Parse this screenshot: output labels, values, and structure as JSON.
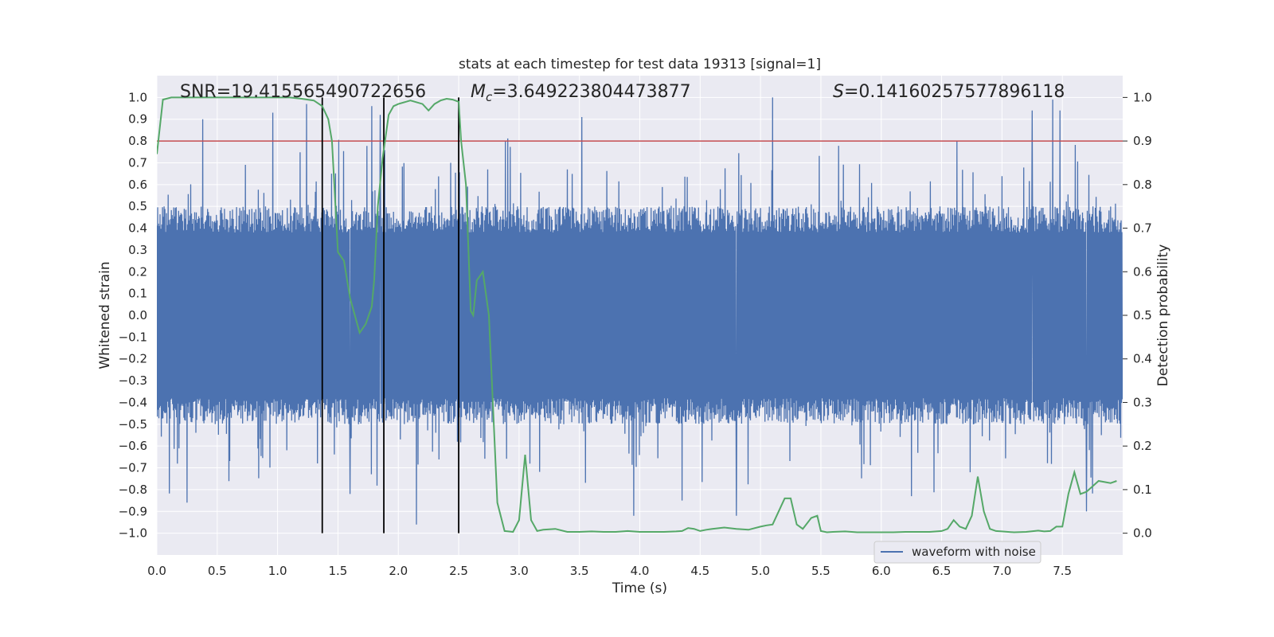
{
  "chart_data": {
    "type": "line",
    "title": "stats at each timestep for test data 19313 [signal=1]",
    "xlabel": "Time (s)",
    "ylabel": "Whitened strain",
    "y2label": "Detection probability",
    "xlim": [
      0.0,
      8.0
    ],
    "ylim": [
      -1.1,
      1.1
    ],
    "y2lim": [
      -0.05,
      1.05
    ],
    "x_ticks": [
      "0.0",
      "0.5",
      "1.0",
      "1.5",
      "2.0",
      "2.5",
      "3.0",
      "3.5",
      "4.0",
      "4.5",
      "5.0",
      "5.5",
      "6.0",
      "6.5",
      "7.0",
      "7.5"
    ],
    "y_ticks": [
      "1.0",
      "0.9",
      "0.8",
      "0.7",
      "0.6",
      "0.5",
      "0.4",
      "0.3",
      "0.2",
      "0.1",
      "0.0",
      "-0.1",
      "-0.2",
      "-0.3",
      "-0.4",
      "-0.5",
      "-0.6",
      "-0.7",
      "-0.8",
      "-0.9",
      "-1.0"
    ],
    "y2_ticks": [
      "1.0",
      "0.9",
      "0.8",
      "0.7",
      "0.6",
      "0.5",
      "0.4",
      "0.3",
      "0.2",
      "0.1",
      "0.0"
    ],
    "grid": true,
    "legend": {
      "position": "bottom-right",
      "entries": [
        "waveform with noise"
      ]
    },
    "annotations": {
      "snr_label": "SNR=",
      "snr_value": "19.415565490722656",
      "mc_symbol": "M",
      "mc_subscript": "c",
      "mc_value": "=3.649223804473877",
      "s_symbol": "S",
      "s_value": "=0.14160257577896118"
    },
    "threshold": {
      "axis": "y2",
      "value": 0.9,
      "color": "#c44e52"
    },
    "event_lines": {
      "x": [
        1.37,
        1.88,
        2.5
      ],
      "color": "#000000"
    },
    "series": [
      {
        "name": "waveform with noise",
        "axis": "y",
        "color": "#4c72b0",
        "style": "dense noisy strain, envelope approx +/-0.45 with spikes up to +1.0 and down to -0.96",
        "notable_peaks": [
          {
            "x": 0.38,
            "y": 0.9
          },
          {
            "x": 0.96,
            "y": 0.93
          },
          {
            "x": 1.24,
            "y": 0.97
          },
          {
            "x": 1.78,
            "y": 0.96
          },
          {
            "x": 1.85,
            "y": 0.92
          },
          {
            "x": 3.52,
            "y": 0.91
          },
          {
            "x": 5.1,
            "y": 1.0
          },
          {
            "x": 7.25,
            "y": 0.94
          },
          {
            "x": 7.42,
            "y": 0.99
          },
          {
            "x": 7.48,
            "y": 0.94
          }
        ],
        "notable_troughs": [
          {
            "x": 0.25,
            "y": -0.86
          },
          {
            "x": 1.6,
            "y": -0.82
          },
          {
            "x": 2.15,
            "y": -0.96
          },
          {
            "x": 3.95,
            "y": -0.92
          },
          {
            "x": 4.35,
            "y": -0.85
          },
          {
            "x": 4.8,
            "y": -0.92
          },
          {
            "x": 6.25,
            "y": -0.83
          },
          {
            "x": 7.7,
            "y": -0.9
          }
        ]
      },
      {
        "name": "",
        "axis": "y2",
        "color": "#55a868",
        "x": [
          0.0,
          0.05,
          0.12,
          0.3,
          0.5,
          0.8,
          1.0,
          1.1,
          1.2,
          1.3,
          1.37,
          1.42,
          1.45,
          1.5,
          1.55,
          1.6,
          1.68,
          1.73,
          1.78,
          1.8,
          1.83,
          1.87,
          1.92,
          1.96,
          2.0,
          2.1,
          2.2,
          2.25,
          2.3,
          2.35,
          2.4,
          2.45,
          2.5,
          2.52,
          2.56,
          2.6,
          2.62,
          2.65,
          2.7,
          2.75,
          2.82,
          2.88,
          2.95,
          3.0,
          3.05,
          3.1,
          3.15,
          3.2,
          3.3,
          3.4,
          3.5,
          3.6,
          3.7,
          3.8,
          3.9,
          4.0,
          4.1,
          4.2,
          4.3,
          4.35,
          4.4,
          4.45,
          4.5,
          4.55,
          4.6,
          4.7,
          4.8,
          4.9,
          5.0,
          5.05,
          5.1,
          5.15,
          5.2,
          5.25,
          5.3,
          5.35,
          5.42,
          5.47,
          5.5,
          5.55,
          5.6,
          5.7,
          5.8,
          5.9,
          6.0,
          6.1,
          6.2,
          6.3,
          6.4,
          6.5,
          6.55,
          6.6,
          6.65,
          6.7,
          6.75,
          6.8,
          6.85,
          6.9,
          6.95,
          7.0,
          7.05,
          7.1,
          7.2,
          7.3,
          7.35,
          7.4,
          7.45,
          7.5,
          7.55,
          7.6,
          7.65,
          7.7,
          7.8,
          7.9,
          7.95
        ],
        "values": [
          0.87,
          0.995,
          1.0,
          1.0,
          1.0,
          1.0,
          1.0,
          1.0,
          0.997,
          0.993,
          0.98,
          0.95,
          0.9,
          0.645,
          0.625,
          0.54,
          0.46,
          0.48,
          0.52,
          0.58,
          0.75,
          0.86,
          0.96,
          0.98,
          0.985,
          0.993,
          0.985,
          0.97,
          0.985,
          0.993,
          0.997,
          0.995,
          0.99,
          0.9,
          0.8,
          0.51,
          0.5,
          0.58,
          0.6,
          0.5,
          0.07,
          0.005,
          0.003,
          0.03,
          0.18,
          0.03,
          0.005,
          0.008,
          0.01,
          0.003,
          0.003,
          0.004,
          0.003,
          0.003,
          0.005,
          0.003,
          0.003,
          0.003,
          0.004,
          0.005,
          0.012,
          0.01,
          0.005,
          0.008,
          0.01,
          0.013,
          0.01,
          0.008,
          0.015,
          0.018,
          0.02,
          0.05,
          0.08,
          0.08,
          0.02,
          0.01,
          0.035,
          0.04,
          0.005,
          0.002,
          0.003,
          0.004,
          0.002,
          0.002,
          0.002,
          0.002,
          0.003,
          0.003,
          0.003,
          0.005,
          0.01,
          0.03,
          0.015,
          0.01,
          0.04,
          0.13,
          0.05,
          0.01,
          0.005,
          0.004,
          0.003,
          0.002,
          0.003,
          0.006,
          0.004,
          0.005,
          0.015,
          0.015,
          0.09,
          0.14,
          0.09,
          0.095,
          0.12,
          0.115,
          0.12
        ]
      }
    ]
  }
}
